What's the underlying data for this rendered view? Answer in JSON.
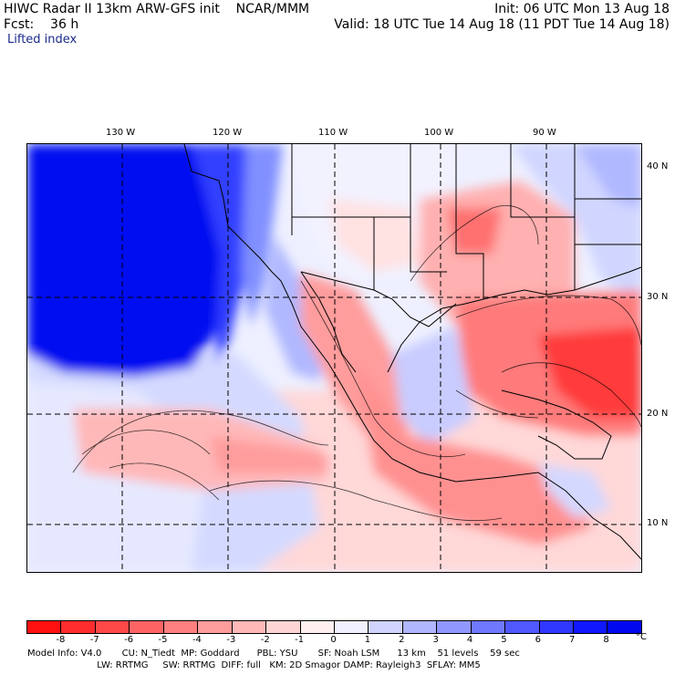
{
  "header": {
    "line1_left": "HIWC Radar II 13km ARW-GFS init    NCAR/MMM",
    "line1_right": "Init: 06 UTC Mon 13 Aug 18",
    "line2_left": "Fcst:    36 h",
    "line2_right": "Valid: 18 UTC Tue 14 Aug 18 (11 PDT Tue 14 Aug 18)",
    "field_name": "Lifted index"
  },
  "map": {
    "lon_labels": [
      "130 W",
      "120 W",
      "110 W",
      "100 W",
      "90 W"
    ],
    "lat_labels": [
      "40 N",
      "30 N",
      "20 N",
      "10 N"
    ]
  },
  "colorbar": {
    "colors": [
      "#ff1010",
      "#ff2d2d",
      "#ff4848",
      "#ff6464",
      "#ff8080",
      "#ff9c9c",
      "#ffb8b8",
      "#ffd4d4",
      "#fff0f0",
      "#f0f0ff",
      "#d0d4ff",
      "#b0b6ff",
      "#9098ff",
      "#7078ff",
      "#5058ff",
      "#3038ff",
      "#1018ff",
      "#0008f0"
    ],
    "labels": [
      "-8",
      "-7",
      "-6",
      "-5",
      "-4",
      "-3",
      "-2",
      "-1",
      "0",
      "1",
      "2",
      "3",
      "4",
      "5",
      "6",
      "7",
      "8"
    ],
    "unit": "°C"
  },
  "footer": {
    "line1": "Model Info: V4.0       CU: N_Tiedt  MP: Goddard      PBL: YSU       SF: Noah LSM      13 km    51 levels    59 sec",
    "line2": "                        LW: RRTMG     SW: RRTMG  DIFF: full   KM: 2D Smagor DAMP: Rayleigh3  SFLAY: MM5"
  }
}
